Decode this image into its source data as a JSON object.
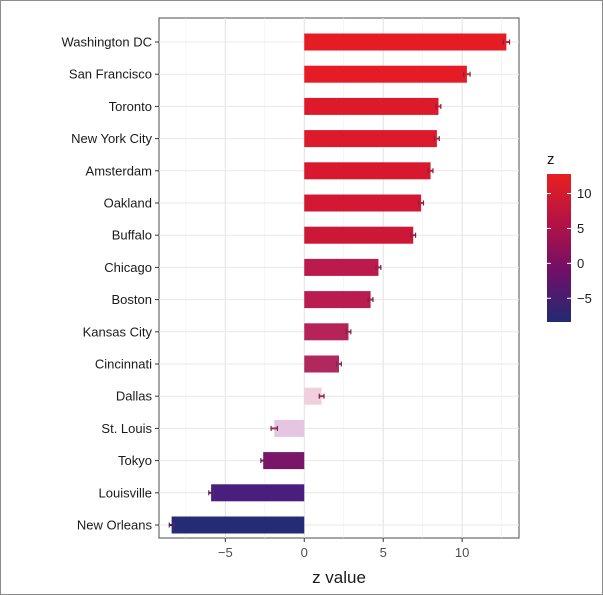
{
  "chart_data": {
    "type": "bar",
    "orientation": "horizontal",
    "categories": [
      "Washington DC",
      "San Francisco",
      "Toronto",
      "New York City",
      "Amsterdam",
      "Oakland",
      "Buffalo",
      "Chicago",
      "Boston",
      "Kansas City",
      "Cincinnati",
      "Dallas",
      "St. Louis",
      "Tokyo",
      "Louisville",
      "New Orleans"
    ],
    "values": [
      12.8,
      10.3,
      8.5,
      8.4,
      8.0,
      7.4,
      6.9,
      4.7,
      4.2,
      2.8,
      2.2,
      1.1,
      -1.9,
      -2.6,
      -5.9,
      -8.4
    ],
    "error": [
      0.2,
      0.2,
      0.15,
      0.15,
      0.15,
      0.15,
      0.15,
      0.15,
      0.15,
      0.15,
      0.15,
      0.15,
      0.2,
      0.15,
      0.15,
      0.15
    ],
    "xlabel": "z value",
    "ylabel": "",
    "xlim": [
      -9.2,
      13.6
    ],
    "xticks": [
      -5,
      0,
      5,
      10
    ],
    "grid": true,
    "legend": {
      "title": "z",
      "position": "right",
      "ticks": [
        10,
        5,
        0,
        -5
      ],
      "range": [
        -8.4,
        12.8
      ],
      "colors": [
        "#e8201f",
        "#b41245",
        "#6d1068",
        "#222a73"
      ]
    },
    "bar_colors": [
      "#e51c23",
      "#e51c25",
      "#dd1a2b",
      "#dc1a2c",
      "#d7182f",
      "#d21833",
      "#cc1736",
      "#bb1a4c",
      "#b91c51",
      "#b52359",
      "#b1285e",
      "#f2cfdc",
      "#e4c6e0",
      "#7a1667",
      "#4a1e7c",
      "#252b74"
    ]
  }
}
